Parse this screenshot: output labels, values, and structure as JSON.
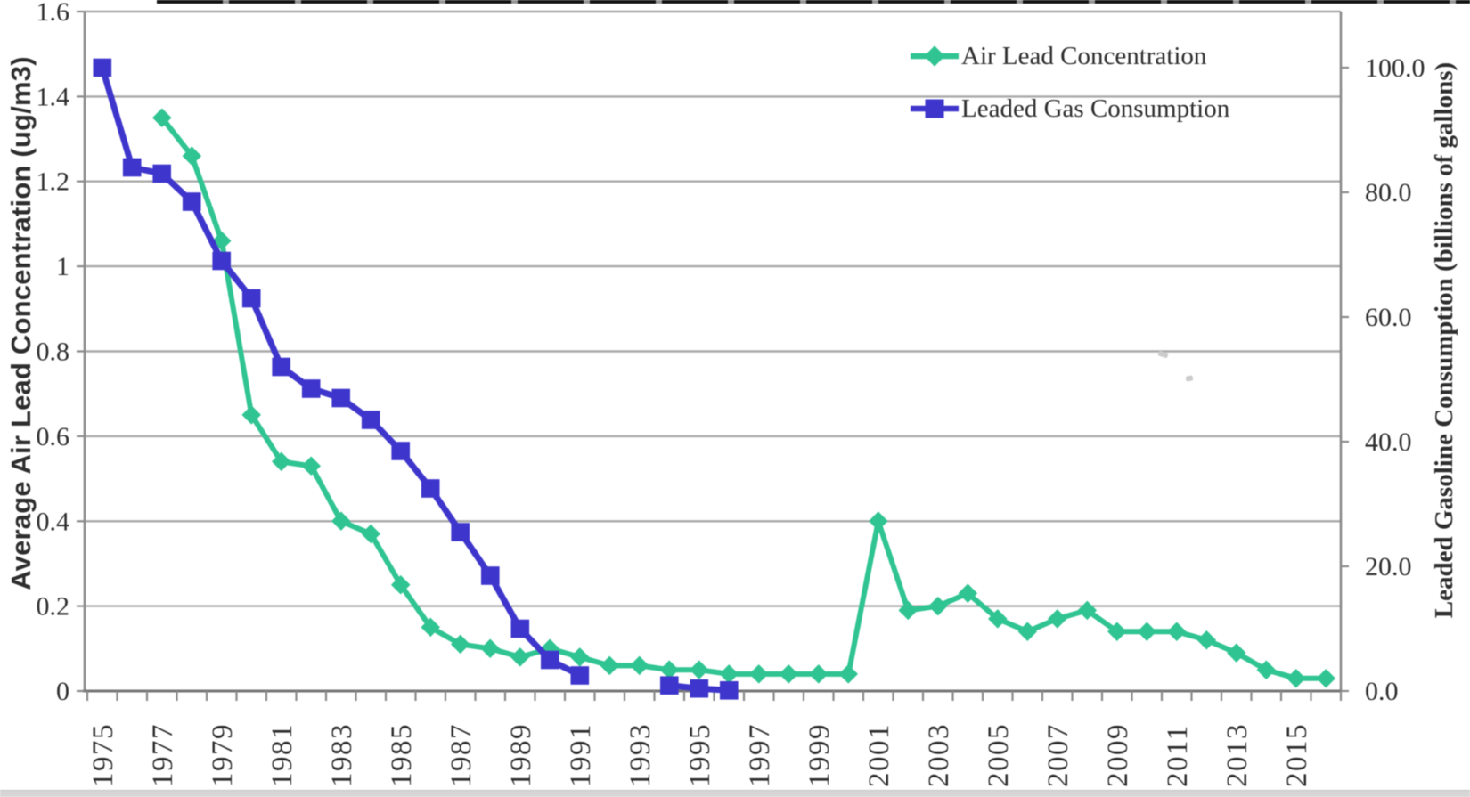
{
  "chart_data": {
    "type": "line",
    "title": "",
    "grid": "horizontal",
    "legend_position": "top-right-inside",
    "x_axis": {
      "categories_range": [
        1975,
        2016
      ],
      "tick_labels": [
        "1975",
        "1977",
        "1979",
        "1981",
        "1983",
        "1985",
        "1987",
        "1989",
        "1991",
        "1993",
        "1995",
        "1997",
        "1999",
        "2001",
        "2003",
        "2005",
        "2007",
        "2009",
        "2011",
        "2013",
        "2015"
      ],
      "label_rotation": -90
    },
    "left_axis": {
      "title": "Average Air Lead Concentration (ug/m3)",
      "min": 0,
      "max": 1.6,
      "tick_interval": 0.2,
      "tick_labels": [
        "0",
        "0.2",
        "0.4",
        "0.6",
        "0.8",
        "1",
        "1.2",
        "1.4",
        "1.6"
      ]
    },
    "right_axis": {
      "title": "Leaded Gasoline Consumption (billions of gallons)",
      "min": 0,
      "max": 100,
      "tick_interval": 20,
      "tick_labels": [
        "0.0",
        "20.0",
        "40.0",
        "60.0",
        "80.0",
        "100.0"
      ]
    },
    "colors": {
      "gridline": "#A9A9A9",
      "axis": "#8A8A8A",
      "text": "#2D2D2D"
    },
    "series": [
      {
        "id": "air-lead",
        "name": "Air Lead Concentration",
        "axis": "left",
        "units": "ug/m3",
        "color": "#2FC492",
        "marker": "diamond",
        "segments": [
          [
            [
              1977,
              1.35
            ],
            [
              1978,
              1.26
            ],
            [
              1979,
              1.06
            ],
            [
              1980,
              0.65
            ],
            [
              1981,
              0.54
            ],
            [
              1982,
              0.53
            ],
            [
              1983,
              0.4
            ],
            [
              1984,
              0.37
            ],
            [
              1985,
              0.25
            ],
            [
              1986,
              0.15
            ],
            [
              1987,
              0.11
            ],
            [
              1988,
              0.1
            ],
            [
              1989,
              0.08
            ],
            [
              1990,
              0.1
            ],
            [
              1991,
              0.08
            ],
            [
              1992,
              0.06
            ],
            [
              1993,
              0.06
            ],
            [
              1994,
              0.05
            ],
            [
              1995,
              0.05
            ],
            [
              1996,
              0.04
            ],
            [
              1997,
              0.04
            ],
            [
              1998,
              0.04
            ],
            [
              1999,
              0.04
            ],
            [
              2000,
              0.04
            ],
            [
              2001,
              0.4
            ],
            [
              2002,
              0.19
            ],
            [
              2003,
              0.2
            ],
            [
              2004,
              0.23
            ],
            [
              2005,
              0.17
            ],
            [
              2006,
              0.14
            ],
            [
              2007,
              0.17
            ],
            [
              2008,
              0.19
            ],
            [
              2009,
              0.14
            ],
            [
              2010,
              0.14
            ],
            [
              2011,
              0.14
            ],
            [
              2012,
              0.12
            ],
            [
              2013,
              0.09
            ],
            [
              2014,
              0.05
            ],
            [
              2015,
              0.03
            ],
            [
              2016,
              0.03
            ]
          ]
        ]
      },
      {
        "id": "leaded-gas",
        "name": "Leaded Gas Consumption",
        "axis": "right",
        "units": "billions of gallons",
        "color": "#3E36CC",
        "marker": "square",
        "segments": [
          [
            [
              1975,
              100.0
            ],
            [
              1976,
              84.0
            ],
            [
              1977,
              83.0
            ],
            [
              1978,
              78.5
            ],
            [
              1979,
              69.0
            ],
            [
              1980,
              63.0
            ],
            [
              1981,
              52.0
            ],
            [
              1982,
              48.5
            ],
            [
              1983,
              47.0
            ],
            [
              1984,
              43.5
            ],
            [
              1985,
              38.5
            ],
            [
              1986,
              32.5
            ],
            [
              1987,
              25.5
            ],
            [
              1988,
              18.5
            ],
            [
              1989,
              10.0
            ],
            [
              1990,
              5.0
            ],
            [
              1991,
              2.5
            ]
          ],
          [
            [
              1994,
              0.9
            ],
            [
              1995,
              0.4
            ],
            [
              1996,
              0.1
            ]
          ]
        ]
      }
    ]
  }
}
